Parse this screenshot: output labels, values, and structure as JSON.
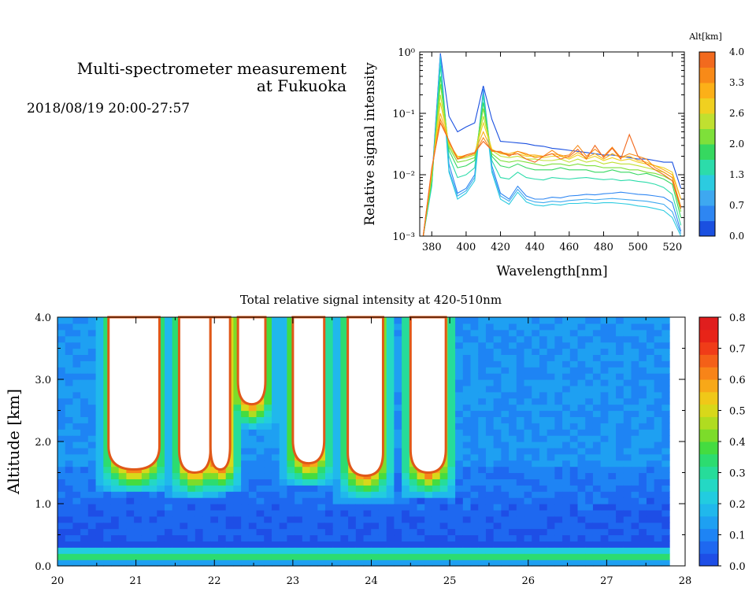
{
  "header": {
    "title_line1": "Multi-spectrometer measurement",
    "title_line2": "at Fukuoka",
    "period": "2018/08/19 20:00-27:57"
  },
  "chart_data": [
    {
      "type": "line",
      "title": "",
      "xlabel": "Wavelength[nm]",
      "ylabel": "Relative signal intensity",
      "log_y": true,
      "xlim": [
        373,
        527
      ],
      "ylim": [
        0.001,
        1
      ],
      "x_ticks": [
        380,
        400,
        420,
        440,
        460,
        480,
        500,
        520
      ],
      "y_tick_labels": [
        "10⁰",
        "10⁻¹",
        "10⁻²",
        "10⁻³"
      ],
      "y_tick_values": [
        1,
        0.1,
        0.01,
        0.001
      ],
      "colorbar": {
        "label": "Alt[km]",
        "ticks": [
          "4.0",
          "3.3",
          "2.6",
          "2.0",
          "1.3",
          "0.7",
          "0.0"
        ],
        "colors": [
          "#1a50e0",
          "#2e86f2",
          "#3ea8f0",
          "#2ccbe0",
          "#2cdcaa",
          "#36d860",
          "#7ee03a",
          "#c0e030",
          "#f0d020",
          "#fcb018",
          "#f88a18",
          "#f26a1e"
        ]
      },
      "wavelengths": [
        375,
        380,
        385,
        390,
        395,
        400,
        405,
        410,
        415,
        420,
        425,
        430,
        435,
        440,
        445,
        450,
        455,
        460,
        465,
        470,
        475,
        480,
        485,
        490,
        495,
        500,
        505,
        510,
        515,
        520,
        525
      ],
      "series": [
        {
          "color": "#1a50e0",
          "values": [
            0.001,
            0.008,
            0.95,
            0.09,
            0.05,
            0.06,
            0.07,
            0.28,
            0.08,
            0.035,
            0.034,
            0.033,
            0.032,
            0.03,
            0.029,
            0.027,
            0.026,
            0.025,
            0.024,
            0.023,
            0.022,
            0.021,
            0.021,
            0.02,
            0.019,
            0.018,
            0.018,
            0.017,
            0.016,
            0.016,
            0.006
          ]
        },
        {
          "color": "#2e86f2",
          "values": [
            0.001,
            0.007,
            0.9,
            0.015,
            0.005,
            0.006,
            0.01,
            0.25,
            0.014,
            0.005,
            0.004,
            0.0065,
            0.0045,
            0.004,
            0.004,
            0.0043,
            0.0042,
            0.0045,
            0.0046,
            0.0048,
            0.0047,
            0.0049,
            0.005,
            0.0052,
            0.005,
            0.0048,
            0.0047,
            0.0045,
            0.0043,
            0.0035,
            0.0012
          ]
        },
        {
          "color": "#3ea8f0",
          "values": [
            0.001,
            0.007,
            0.85,
            0.012,
            0.0045,
            0.0055,
            0.009,
            0.22,
            0.012,
            0.0045,
            0.0037,
            0.0058,
            0.004,
            0.0036,
            0.0035,
            0.0037,
            0.0036,
            0.0038,
            0.0039,
            0.004,
            0.0039,
            0.004,
            0.0041,
            0.004,
            0.0039,
            0.0038,
            0.0037,
            0.0035,
            0.0033,
            0.0025,
            0.0011
          ]
        },
        {
          "color": "#2ccbe0",
          "values": [
            0.001,
            0.0065,
            0.8,
            0.011,
            0.004,
            0.005,
            0.008,
            0.2,
            0.011,
            0.004,
            0.0033,
            0.0052,
            0.0036,
            0.0032,
            0.0031,
            0.0033,
            0.0032,
            0.0034,
            0.0034,
            0.0035,
            0.0034,
            0.0035,
            0.0035,
            0.0034,
            0.0033,
            0.0031,
            0.003,
            0.0028,
            0.0026,
            0.002,
            0.001
          ]
        },
        {
          "color": "#2cdcaa",
          "values": [
            0.001,
            0.007,
            0.6,
            0.02,
            0.009,
            0.01,
            0.013,
            0.2,
            0.017,
            0.009,
            0.0085,
            0.011,
            0.009,
            0.0085,
            0.0082,
            0.009,
            0.0087,
            0.0085,
            0.0088,
            0.009,
            0.0086,
            0.0083,
            0.0085,
            0.008,
            0.0082,
            0.0078,
            0.0075,
            0.007,
            0.0062,
            0.0048,
            0.0015
          ]
        },
        {
          "color": "#36d860",
          "values": [
            0.001,
            0.008,
            0.4,
            0.025,
            0.013,
            0.014,
            0.017,
            0.15,
            0.02,
            0.014,
            0.013,
            0.015,
            0.013,
            0.012,
            0.012,
            0.012,
            0.013,
            0.012,
            0.012,
            0.012,
            0.011,
            0.011,
            0.012,
            0.011,
            0.011,
            0.01,
            0.0105,
            0.0095,
            0.0085,
            0.007,
            0.002
          ]
        },
        {
          "color": "#7ee03a",
          "values": [
            0.001,
            0.009,
            0.3,
            0.028,
            0.016,
            0.017,
            0.019,
            0.12,
            0.022,
            0.017,
            0.016,
            0.017,
            0.016,
            0.015,
            0.014,
            0.015,
            0.015,
            0.014,
            0.015,
            0.014,
            0.014,
            0.013,
            0.013,
            0.013,
            0.012,
            0.012,
            0.011,
            0.0105,
            0.0095,
            0.008,
            0.0025
          ]
        },
        {
          "color": "#c0e030",
          "values": [
            0.001,
            0.01,
            0.2,
            0.03,
            0.018,
            0.019,
            0.021,
            0.09,
            0.025,
            0.02,
            0.019,
            0.02,
            0.018,
            0.018,
            0.017,
            0.017,
            0.018,
            0.016,
            0.018,
            0.016,
            0.017,
            0.015,
            0.016,
            0.015,
            0.015,
            0.014,
            0.013,
            0.012,
            0.011,
            0.009,
            0.003
          ]
        },
        {
          "color": "#f0d020",
          "values": [
            0.001,
            0.011,
            0.15,
            0.032,
            0.02,
            0.02,
            0.022,
            0.07,
            0.026,
            0.022,
            0.021,
            0.022,
            0.02,
            0.02,
            0.019,
            0.02,
            0.02,
            0.018,
            0.021,
            0.018,
            0.02,
            0.017,
            0.019,
            0.017,
            0.018,
            0.016,
            0.015,
            0.014,
            0.013,
            0.011,
            0.004
          ]
        },
        {
          "color": "#fcb018",
          "values": [
            0.001,
            0.012,
            0.1,
            0.034,
            0.019,
            0.021,
            0.023,
            0.05,
            0.025,
            0.023,
            0.022,
            0.024,
            0.021,
            0.021,
            0.02,
            0.022,
            0.021,
            0.019,
            0.023,
            0.019,
            0.022,
            0.018,
            0.022,
            0.019,
            0.02,
            0.017,
            0.016,
            0.014,
            0.012,
            0.01,
            0.004
          ]
        },
        {
          "color": "#f88a18",
          "values": [
            0.001,
            0.012,
            0.08,
            0.035,
            0.018,
            0.02,
            0.022,
            0.04,
            0.024,
            0.024,
            0.02,
            0.024,
            0.022,
            0.019,
            0.02,
            0.025,
            0.02,
            0.021,
            0.03,
            0.02,
            0.026,
            0.02,
            0.028,
            0.019,
            0.022,
            0.02,
            0.018,
            0.013,
            0.011,
            0.009,
            0.003
          ]
        },
        {
          "color": "#f26a1e",
          "values": [
            0.001,
            0.013,
            0.07,
            0.036,
            0.018,
            0.021,
            0.023,
            0.035,
            0.025,
            0.023,
            0.021,
            0.022,
            0.018,
            0.016,
            0.02,
            0.022,
            0.018,
            0.02,
            0.026,
            0.018,
            0.03,
            0.019,
            0.027,
            0.018,
            0.045,
            0.02,
            0.015,
            0.012,
            0.01,
            0.008,
            0.0028
          ]
        }
      ]
    },
    {
      "type": "heatmap",
      "title": "Total relative signal intensity at 420-510nm",
      "xlabel": "",
      "ylabel": "Altitude [km]",
      "xlim": [
        20,
        28
      ],
      "ylim": [
        0,
        4
      ],
      "x_ticks": [
        "20",
        "21",
        "22",
        "23",
        "24",
        "25",
        "26",
        "27",
        "28"
      ],
      "y_ticks": [
        "0.0",
        "1.0",
        "2.0",
        "3.0",
        "4.0"
      ],
      "data_x_end": 27.8,
      "colorbar": {
        "ticks": [
          "0.8",
          "0.7",
          "0.6",
          "0.5",
          "0.4",
          "0.3",
          "0.2",
          "0.1",
          "0.0"
        ],
        "colors": [
          "#1e4ee6",
          "#1e68f0",
          "#1e84f4",
          "#1ea0f2",
          "#20b8ec",
          "#22cce0",
          "#24d8c4",
          "#26dc9a",
          "#2cdc70",
          "#44dc40",
          "#7cdc2a",
          "#b0dc20",
          "#d8d81a",
          "#f0c818",
          "#f8a818",
          "#f88418",
          "#f46018",
          "#f03c18",
          "#e82418",
          "#e01e1e"
        ]
      },
      "saturated_columns": [
        {
          "t_start": 20.65,
          "t_end": 21.3,
          "bottom_km": 1.55
        },
        {
          "t_start": 21.55,
          "t_end": 21.95,
          "bottom_km": 1.5
        },
        {
          "t_start": 21.95,
          "t_end": 22.2,
          "bottom_km": 1.55
        },
        {
          "t_start": 22.3,
          "t_end": 22.65,
          "bottom_km": 2.6
        },
        {
          "t_start": 23.0,
          "t_end": 23.4,
          "bottom_km": 1.65
        },
        {
          "t_start": 23.7,
          "t_end": 24.15,
          "bottom_km": 1.45
        },
        {
          "t_start": 24.5,
          "t_end": 24.95,
          "bottom_km": 1.5
        }
      ]
    }
  ]
}
